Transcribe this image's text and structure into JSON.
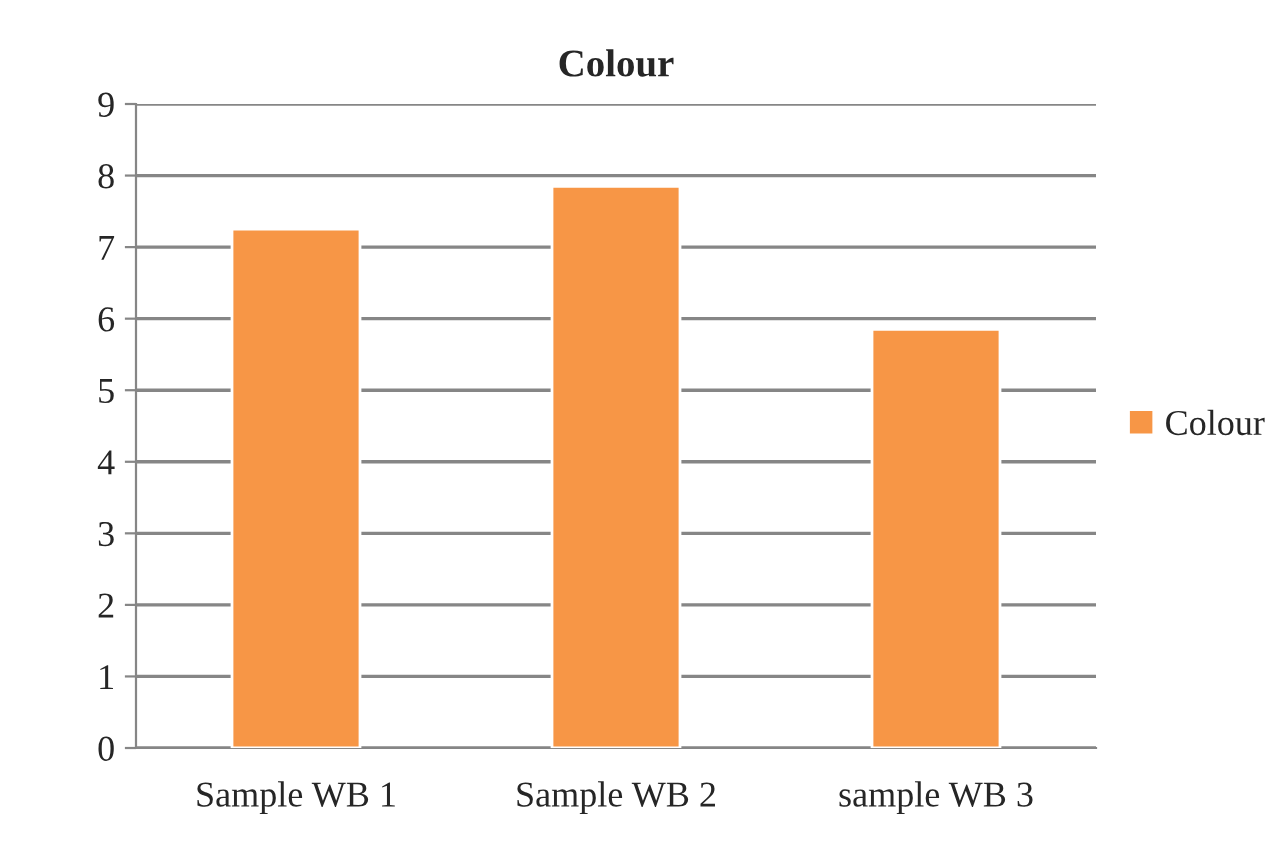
{
  "chart_data": {
    "type": "bar",
    "title": "Colour",
    "categories": [
      "Sample WB 1",
      "Sample WB 2",
      "sample WB 3"
    ],
    "series": [
      {
        "name": "Colour",
        "color": "#f79646",
        "values": [
          7.25,
          7.85,
          5.85
        ]
      }
    ],
    "ylim": [
      0,
      9
    ],
    "yticks": [
      0,
      1,
      2,
      3,
      4,
      5,
      6,
      7,
      8,
      9
    ],
    "grid": "y",
    "legend": "right"
  }
}
